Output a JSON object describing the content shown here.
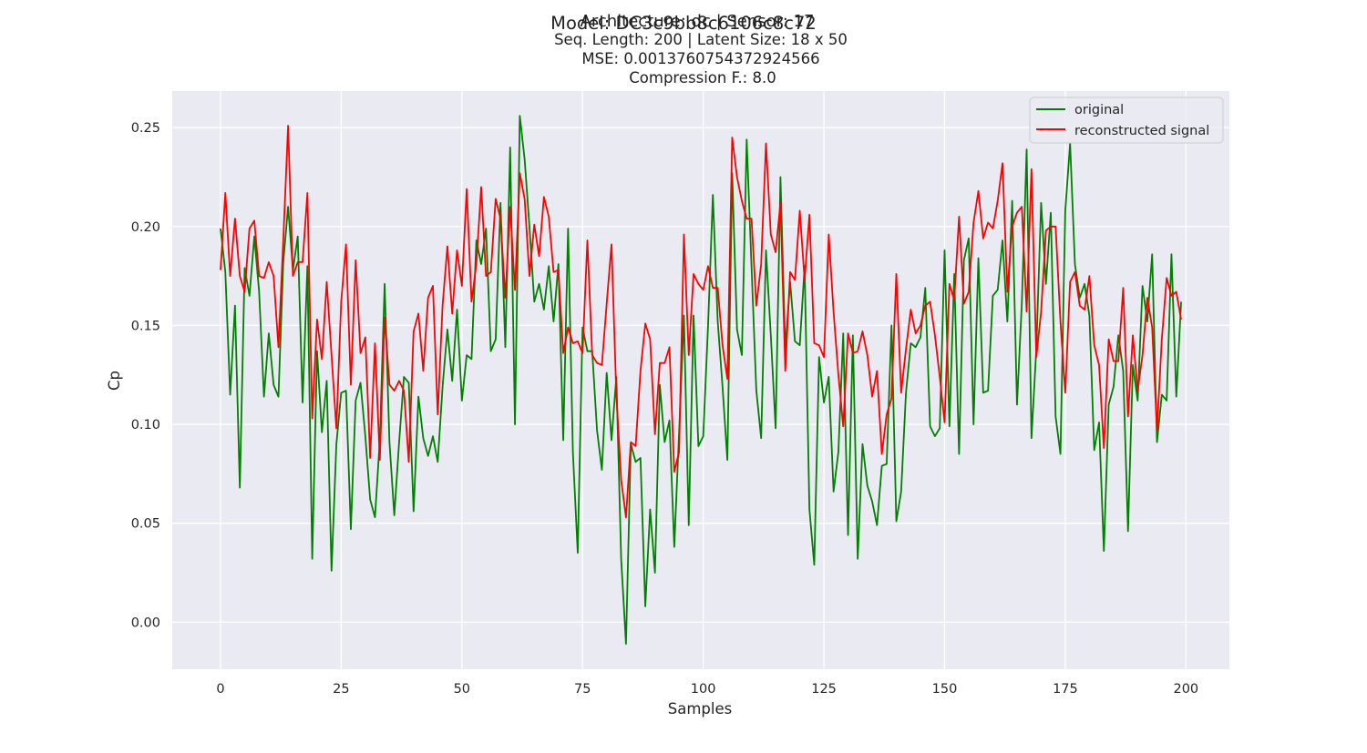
{
  "titles": {
    "overlap_a": "Architecture: dc | Sensor: 17",
    "overlap_b": "Model: DC3c9bb8c6106c8c72",
    "line2": "Seq. Length: 200 | Latent Size: 18 x 50",
    "line3": "MSE: 0.0013760754372924566",
    "line4": "Compression F.: 8.0"
  },
  "chart_data": {
    "type": "line",
    "xlabel": "Samples",
    "ylabel": "Cp",
    "xlim": [
      -10,
      209
    ],
    "ylim": [
      -0.0238,
      0.2685
    ],
    "xticks": [
      0,
      25,
      50,
      75,
      100,
      125,
      150,
      175,
      200
    ],
    "xtick_labels": [
      "0",
      "25",
      "50",
      "75",
      "100",
      "125",
      "150",
      "175",
      "200"
    ],
    "yticks": [
      0.0,
      0.05,
      0.1,
      0.15,
      0.2,
      0.25
    ],
    "ytick_labels": [
      "0.00",
      "0.05",
      "0.10",
      "0.15",
      "0.20",
      "0.25"
    ],
    "grid": true,
    "legend_position": "top-right",
    "series": [
      {
        "name": "original",
        "color": "#008000",
        "values": [
          0.199,
          0.177,
          0.115,
          0.16,
          0.068,
          0.179,
          0.165,
          0.195,
          0.167,
          0.114,
          0.146,
          0.12,
          0.114,
          0.182,
          0.21,
          0.178,
          0.195,
          0.111,
          0.18,
          0.032,
          0.137,
          0.096,
          0.122,
          0.026,
          0.09,
          0.116,
          0.117,
          0.047,
          0.112,
          0.121,
          0.094,
          0.062,
          0.053,
          0.092,
          0.171,
          0.091,
          0.054,
          0.091,
          0.124,
          0.121,
          0.056,
          0.114,
          0.093,
          0.084,
          0.094,
          0.081,
          0.119,
          0.148,
          0.122,
          0.158,
          0.112,
          0.135,
          0.133,
          0.193,
          0.181,
          0.199,
          0.137,
          0.143,
          0.212,
          0.139,
          0.24,
          0.1,
          0.256,
          0.234,
          0.2,
          0.162,
          0.171,
          0.158,
          0.18,
          0.152,
          0.181,
          0.092,
          0.199,
          0.086,
          0.035,
          0.149,
          0.137,
          0.137,
          0.097,
          0.077,
          0.126,
          0.092,
          0.124,
          0.032,
          -0.011,
          0.09,
          0.081,
          0.083,
          0.008,
          0.057,
          0.025,
          0.12,
          0.091,
          0.102,
          0.038,
          0.096,
          0.155,
          0.049,
          0.155,
          0.089,
          0.094,
          0.15,
          0.216,
          0.152,
          0.119,
          0.082,
          0.227,
          0.148,
          0.135,
          0.244,
          0.18,
          0.117,
          0.093,
          0.188,
          0.145,
          0.098,
          0.225,
          0.138,
          0.172,
          0.142,
          0.14,
          0.18,
          0.057,
          0.029,
          0.134,
          0.111,
          0.124,
          0.066,
          0.086,
          0.146,
          0.044,
          0.145,
          0.032,
          0.09,
          0.069,
          0.061,
          0.049,
          0.079,
          0.08,
          0.15,
          0.051,
          0.066,
          0.116,
          0.141,
          0.139,
          0.144,
          0.169,
          0.099,
          0.094,
          0.098,
          0.188,
          0.099,
          0.176,
          0.085,
          0.183,
          0.194,
          0.1,
          0.184,
          0.116,
          0.117,
          0.165,
          0.168,
          0.193,
          0.152,
          0.213,
          0.11,
          0.161,
          0.239,
          0.093,
          0.138,
          0.212,
          0.171,
          0.207,
          0.104,
          0.085,
          0.208,
          0.242,
          0.181,
          0.164,
          0.171,
          0.155,
          0.087,
          0.101,
          0.036,
          0.11,
          0.119,
          0.145,
          0.127,
          0.046,
          0.13,
          0.112,
          0.17,
          0.152,
          0.186,
          0.091,
          0.115,
          0.112,
          0.186,
          0.114,
          0.162
        ]
      },
      {
        "name": "reconstructed signal",
        "color": "#ff0000",
        "values": [
          0.178,
          0.217,
          0.175,
          0.204,
          0.175,
          0.167,
          0.199,
          0.203,
          0.175,
          0.174,
          0.182,
          0.175,
          0.139,
          0.193,
          0.251,
          0.175,
          0.182,
          0.182,
          0.217,
          0.103,
          0.153,
          0.133,
          0.172,
          0.135,
          0.098,
          0.162,
          0.191,
          0.12,
          0.183,
          0.136,
          0.144,
          0.083,
          0.141,
          0.082,
          0.154,
          0.12,
          0.117,
          0.122,
          0.117,
          0.081,
          0.147,
          0.156,
          0.127,
          0.164,
          0.17,
          0.105,
          0.16,
          0.19,
          0.156,
          0.188,
          0.17,
          0.219,
          0.162,
          0.181,
          0.22,
          0.175,
          0.177,
          0.214,
          0.204,
          0.164,
          0.21,
          0.168,
          0.227,
          0.214,
          0.175,
          0.201,
          0.185,
          0.215,
          0.205,
          0.177,
          0.178,
          0.136,
          0.149,
          0.141,
          0.142,
          0.136,
          0.193,
          0.135,
          0.131,
          0.13,
          0.161,
          0.191,
          0.115,
          0.072,
          0.053,
          0.091,
          0.089,
          0.127,
          0.151,
          0.143,
          0.095,
          0.131,
          0.131,
          0.139,
          0.076,
          0.086,
          0.196,
          0.135,
          0.176,
          0.171,
          0.168,
          0.18,
          0.169,
          0.169,
          0.14,
          0.123,
          0.245,
          0.225,
          0.213,
          0.204,
          0.204,
          0.16,
          0.181,
          0.242,
          0.196,
          0.187,
          0.212,
          0.127,
          0.177,
          0.173,
          0.208,
          0.173,
          0.206,
          0.141,
          0.14,
          0.134,
          0.196,
          0.157,
          0.125,
          0.099,
          0.146,
          0.136,
          0.137,
          0.147,
          0.135,
          0.114,
          0.127,
          0.085,
          0.105,
          0.113,
          0.176,
          0.116,
          0.138,
          0.158,
          0.146,
          0.15,
          0.16,
          0.162,
          0.145,
          0.124,
          0.101,
          0.171,
          0.163,
          0.205,
          0.161,
          0.167,
          0.202,
          0.218,
          0.194,
          0.202,
          0.199,
          0.213,
          0.232,
          0.167,
          0.2,
          0.207,
          0.21,
          0.157,
          0.229,
          0.134,
          0.157,
          0.198,
          0.2,
          0.2,
          0.152,
          0.116,
          0.172,
          0.177,
          0.16,
          0.158,
          0.175,
          0.14,
          0.13,
          0.088,
          0.143,
          0.132,
          0.132,
          0.169,
          0.104,
          0.145,
          0.117,
          0.135,
          0.164,
          0.149,
          0.097,
          0.143,
          0.174,
          0.165,
          0.167,
          0.153
        ]
      }
    ]
  }
}
